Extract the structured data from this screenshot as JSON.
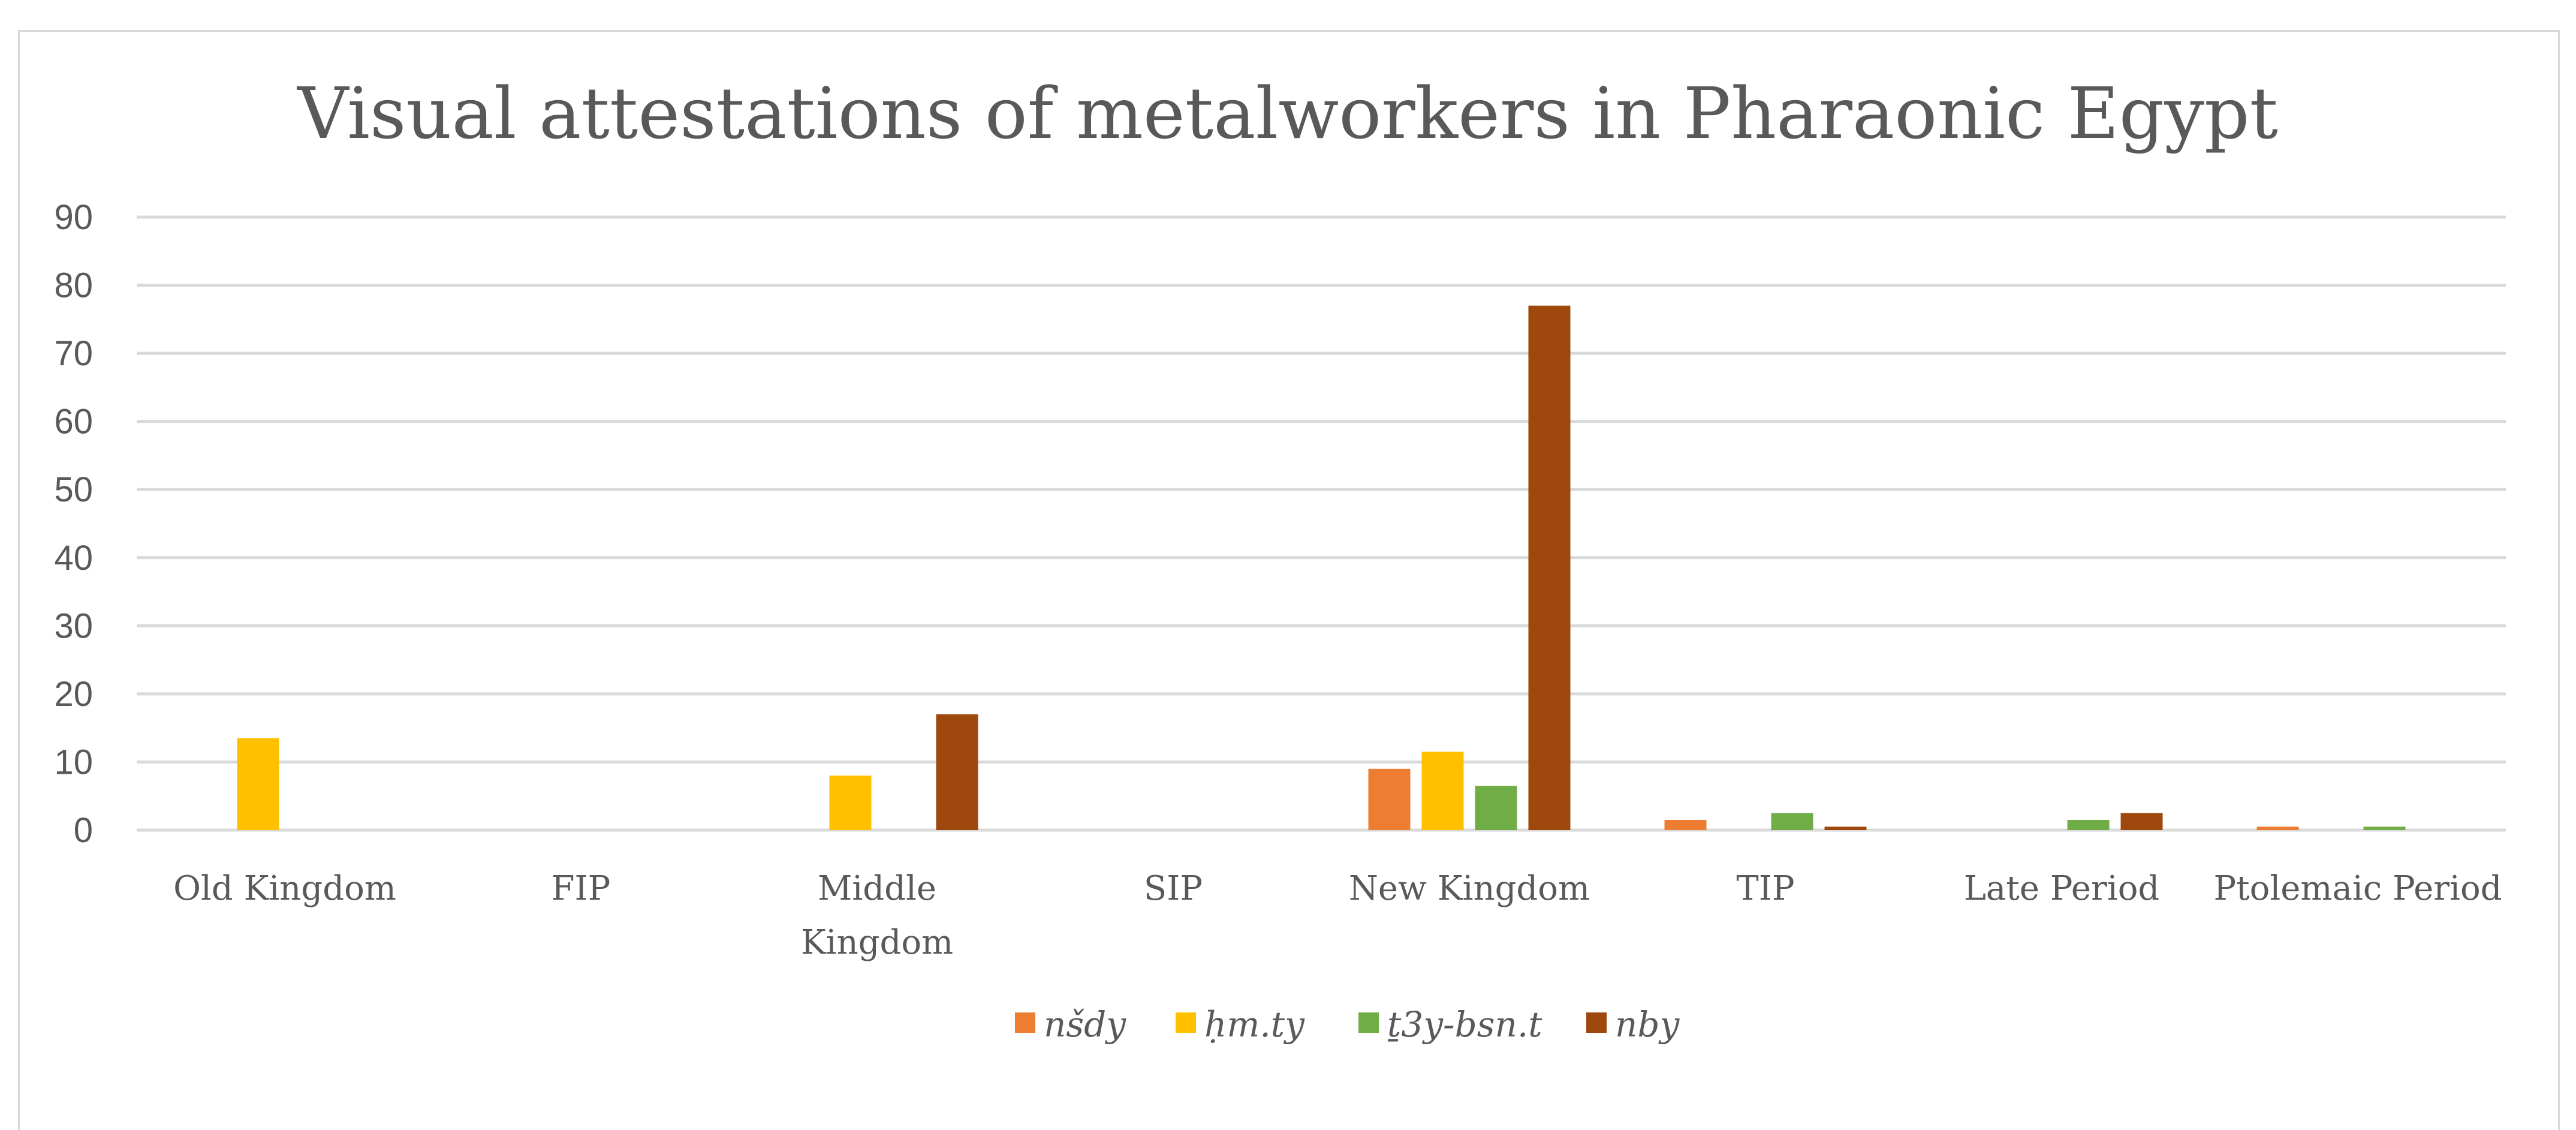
{
  "chart_data": {
    "type": "bar",
    "title": "Visual attestations of metalworkers in Pharaonic Egypt",
    "xlabel": "",
    "ylabel": "",
    "ylim": [
      0,
      90
    ],
    "yticks": [
      "0",
      "10",
      "20",
      "30",
      "40",
      "50",
      "60",
      "70",
      "80",
      "90"
    ],
    "categories": [
      [
        "Old Kingdom"
      ],
      [
        "FIP"
      ],
      [
        "Middle",
        "Kingdom"
      ],
      [
        "SIP"
      ],
      [
        "New Kingdom"
      ],
      [
        "TIP"
      ],
      [
        "Late Period"
      ],
      [
        "Ptolemaic Period"
      ]
    ],
    "grid": true,
    "legend_position": "bottom-center",
    "series": [
      {
        "name": "nšdy",
        "color": "#ed7d31",
        "values": [
          0,
          0,
          0,
          0,
          9,
          1.5,
          0,
          0.5
        ]
      },
      {
        "name": "ḥm.ty",
        "color": "#ffc000",
        "values": [
          13.5,
          0,
          8,
          0,
          11.5,
          0,
          0,
          0
        ]
      },
      {
        "name": "ṯ3y-bsn.t",
        "color": "#70ad47",
        "values": [
          0,
          0,
          0,
          0,
          6.5,
          2.5,
          1.5,
          0.5
        ]
      },
      {
        "name": "nby",
        "color": "#9e480e",
        "values": [
          0,
          0,
          17,
          0,
          77,
          0.5,
          2.5,
          0
        ]
      }
    ]
  }
}
